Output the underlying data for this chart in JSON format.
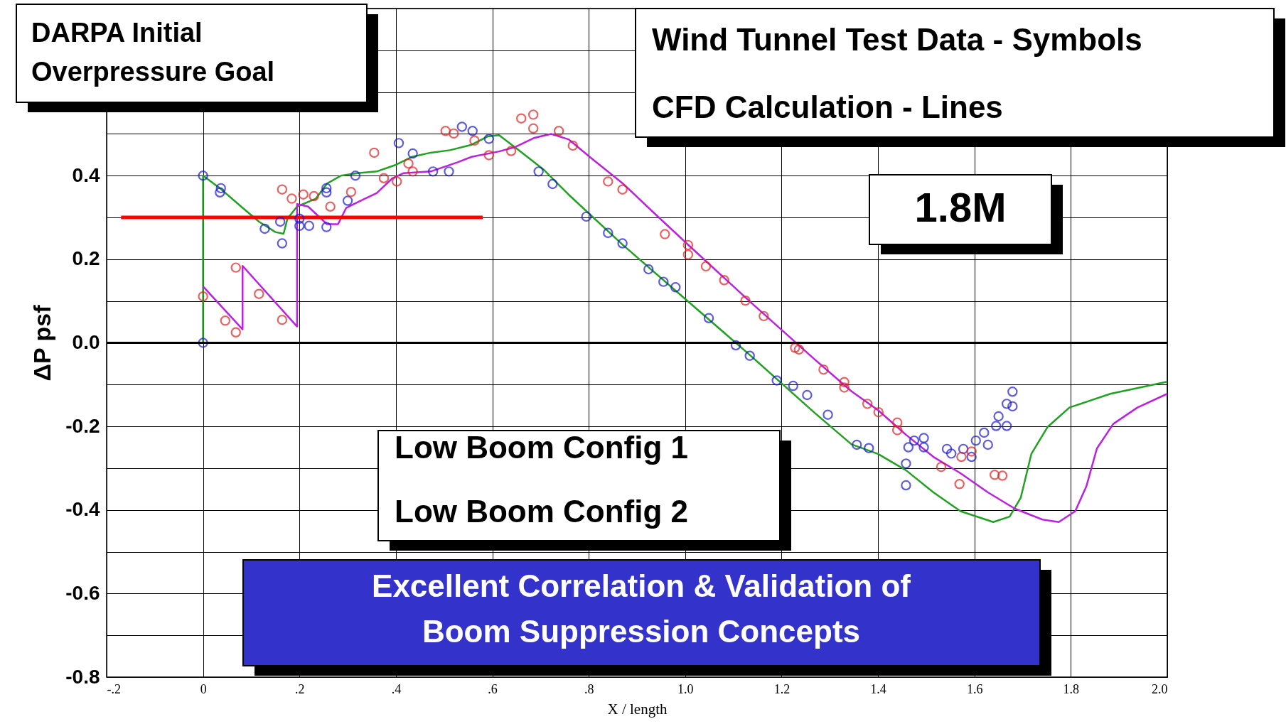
{
  "chart_data": {
    "type": "scatter",
    "xlabel": "X / length",
    "ylabel": "ΔP psf",
    "xlim": [
      -0.2,
      2.0
    ],
    "ylim": [
      -0.8,
      0.8
    ],
    "xticks": [
      {
        "value": -0.2,
        "label": "-.2"
      },
      0,
      {
        "value": 0.2,
        "label": ".2"
      },
      {
        "value": 0.4,
        "label": ".4"
      },
      {
        "value": 0.6,
        "label": ".6"
      },
      {
        "value": 0.8,
        "label": ".8"
      },
      {
        "value": 1.0,
        "label": "1.0"
      },
      1.2,
      1.4,
      1.6,
      1.8,
      {
        "value": 2.0,
        "label": "2.0"
      }
    ],
    "yticks": [
      -0.8,
      {
        "value": -0.7,
        "label": null
      },
      -0.6,
      {
        "value": -0.5,
        "label": null
      },
      -0.4,
      {
        "value": -0.3,
        "label": null
      },
      -0.2,
      {
        "value": -0.1,
        "label": null
      },
      {
        "value": 0,
        "label": "0.0"
      },
      {
        "value": 0.1,
        "label": null
      },
      0.2,
      {
        "value": 0.3,
        "label": null
      },
      0.4,
      {
        "value": 0.5,
        "label": null
      },
      {
        "value": 0.6,
        "label": null
      },
      {
        "value": 0.7,
        "label": null
      },
      {
        "value": 0.8,
        "label": null
      }
    ],
    "grid": true,
    "line_style": "solid",
    "ref_lines": [
      {
        "axis": "y",
        "value": 0,
        "color": "#000000"
      }
    ],
    "series": [
      {
        "type": "line",
        "color": "#22a022",
        "x": [
          -0.2,
          0,
          0,
          0.037,
          0.082,
          0.116,
          0.15,
          0.167,
          0.175,
          0.195,
          0.234,
          0.257,
          0.286,
          0.32,
          0.36,
          0.4,
          0.433,
          0.472,
          0.512,
          0.557,
          0.591,
          0.614,
          0.647,
          0.706,
          0.758,
          0.871,
          1.003,
          1.135,
          1.267,
          1.345,
          1.4,
          1.458,
          1.515,
          1.571,
          1.639,
          1.673,
          1.696,
          1.718,
          1.752,
          1.797,
          1.882,
          2.0
        ],
        "values": [
          0,
          0,
          0.4,
          0.368,
          0.323,
          0.29,
          0.265,
          0.261,
          0.297,
          0.326,
          0.345,
          0.381,
          0.4,
          0.406,
          0.41,
          0.426,
          0.445,
          0.455,
          0.461,
          0.474,
          0.494,
          0.497,
          0.468,
          0.415,
          0.355,
          0.234,
          0.102,
          -0.03,
          -0.166,
          -0.243,
          -0.266,
          -0.305,
          -0.358,
          -0.403,
          -0.429,
          -0.416,
          -0.371,
          -0.266,
          -0.201,
          -0.155,
          -0.122,
          -0.093
        ]
      },
      {
        "type": "line",
        "color": "#bb22dd",
        "x": [
          0,
          0.082,
          0.082,
          0.195,
          0.195,
          0.218,
          0.257,
          0.28,
          0.297,
          0.325,
          0.36,
          0.393,
          0.416,
          0.472,
          0.528,
          0.557,
          0.614,
          0.646,
          0.686,
          0.722,
          0.758,
          0.805,
          0.871,
          0.937,
          1.003,
          1.135,
          1.267,
          1.345,
          1.4,
          1.458,
          1.515,
          1.571,
          1.628,
          1.684,
          1.741,
          1.775,
          1.809,
          1.832,
          1.854,
          1.888,
          1.938,
          2.0
        ],
        "values": [
          0.135,
          0.032,
          0.184,
          0.039,
          0.332,
          0.326,
          0.284,
          0.284,
          0.323,
          0.339,
          0.358,
          0.394,
          0.406,
          0.41,
          0.432,
          0.445,
          0.458,
          0.468,
          0.49,
          0.5,
          0.487,
          0.442,
          0.381,
          0.309,
          0.238,
          0.098,
          -0.038,
          -0.116,
          -0.161,
          -0.22,
          -0.273,
          -0.312,
          -0.358,
          -0.397,
          -0.423,
          -0.429,
          -0.403,
          -0.344,
          -0.253,
          -0.194,
          -0.155,
          -0.122
        ]
      },
      {
        "type": "line",
        "color": "#ff0000",
        "x": [
          -0.17,
          0.58
        ],
        "values": [
          0.3,
          0.3
        ]
      },
      {
        "marker": "circle",
        "color": "#1a1acc",
        "x": [
          0,
          0,
          0.037,
          0.035,
          0.128,
          0.16,
          0.164,
          0.2,
          0.2,
          0.22,
          0.256,
          0.256,
          0.256,
          0.3,
          0.316,
          0.406,
          0.435,
          0.477,
          0.51,
          0.537,
          0.559,
          0.593,
          0.696,
          0.725,
          0.795,
          0.84,
          0.87,
          0.924,
          0.955,
          0.98,
          1.049,
          1.105,
          1.134,
          1.19,
          1.224,
          1.253,
          1.296,
          1.356,
          1.381,
          1.458,
          1.458,
          1.463,
          1.475,
          1.495,
          1.495,
          1.543,
          1.552,
          1.577,
          1.594,
          1.603,
          1.62,
          1.628,
          1.645,
          1.65,
          1.667,
          1.667,
          1.679,
          1.679
        ],
        "values": [
          0.4,
          0,
          0.37,
          0.36,
          0.273,
          0.29,
          0.238,
          0.297,
          0.28,
          0.28,
          0.277,
          0.36,
          0.37,
          0.34,
          0.4,
          0.478,
          0.453,
          0.41,
          0.41,
          0.517,
          0.507,
          0.488,
          0.41,
          0.38,
          0.302,
          0.263,
          0.238,
          0.176,
          0.146,
          0.133,
          0.059,
          -0.006,
          -0.031,
          -0.09,
          -0.103,
          -0.125,
          -0.172,
          -0.244,
          -0.252,
          -0.341,
          -0.289,
          -0.25,
          -0.234,
          -0.25,
          -0.228,
          -0.254,
          -0.265,
          -0.254,
          -0.273,
          -0.234,
          -0.215,
          -0.244,
          -0.199,
          -0.176,
          -0.199,
          -0.146,
          -0.117,
          -0.152
        ]
      },
      {
        "marker": "circle",
        "color": "#dd2222",
        "x": [
          0,
          0.046,
          0.068,
          0.068,
          0.116,
          0.164,
          0.164,
          0.184,
          0.208,
          0.23,
          0.264,
          0.307,
          0.355,
          0.375,
          0.402,
          0.426,
          0.435,
          0.503,
          0.52,
          0.563,
          0.593,
          0.639,
          0.66,
          0.685,
          0.685,
          0.738,
          0.767,
          0.84,
          0.87,
          0.958,
          1.006,
          1.006,
          1.043,
          1.081,
          1.125,
          1.163,
          1.228,
          1.236,
          1.287,
          1.33,
          1.33,
          1.378,
          1.401,
          1.44,
          1.44,
          1.531,
          1.569,
          1.573,
          1.594,
          1.642,
          1.658
        ],
        "values": [
          0.111,
          0.053,
          0.025,
          0.18,
          0.117,
          0.055,
          0.367,
          0.345,
          0.355,
          0.351,
          0.326,
          0.361,
          0.455,
          0.394,
          0.386,
          0.429,
          0.41,
          0.507,
          0.501,
          0.484,
          0.449,
          0.459,
          0.537,
          0.546,
          0.513,
          0.507,
          0.472,
          0.386,
          0.367,
          0.26,
          0.234,
          0.211,
          0.183,
          0.15,
          0.101,
          0.064,
          -0.012,
          -0.016,
          -0.064,
          -0.094,
          -0.107,
          -0.146,
          -0.166,
          -0.191,
          -0.209,
          -0.297,
          -0.338,
          -0.273,
          -0.26,
          -0.316,
          -0.318
        ]
      }
    ],
    "annotations": [
      "DARPA Initial\nOverpressure Goal",
      "Wind Tunnel Test Data - Symbols",
      "CFD Calculation - Lines",
      "1.8M",
      "Low Boom Config 1",
      "Low Boom Config 2",
      "Excellent Correlation & Validation of\nBoom Suppression Concepts"
    ]
  }
}
